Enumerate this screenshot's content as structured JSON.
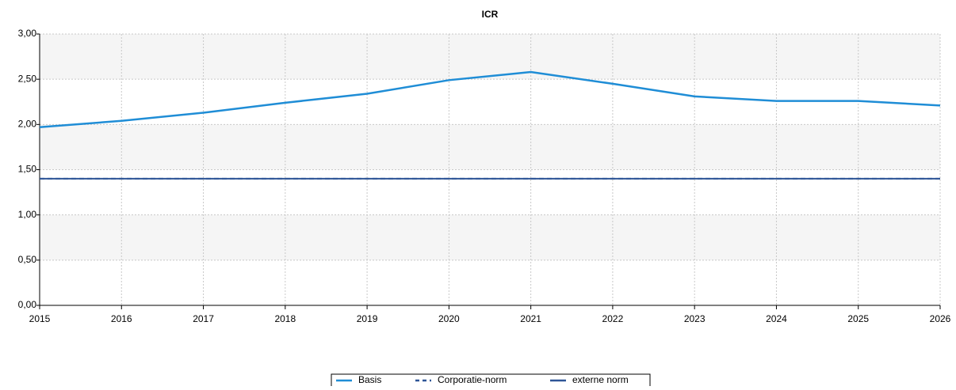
{
  "chart_data": {
    "type": "line",
    "title": "ICR",
    "x": [
      2015,
      2016,
      2017,
      2018,
      2019,
      2020,
      2021,
      2022,
      2023,
      2024,
      2025,
      2026
    ],
    "xlim": [
      2015,
      2026
    ],
    "xticks": [
      2015,
      2016,
      2017,
      2018,
      2019,
      2020,
      2021,
      2022,
      2023,
      2024,
      2025,
      2026
    ],
    "ylim": [
      0,
      3
    ],
    "yticks": [
      {
        "value": 0,
        "label": "0,00"
      },
      {
        "value": 0.5,
        "label": "0,50"
      },
      {
        "value": 1,
        "label": "1,00"
      },
      {
        "value": 1.5,
        "label": "1,50"
      },
      {
        "value": 2,
        "label": "2,00"
      },
      {
        "value": 2.5,
        "label": "2,50"
      },
      {
        "value": 3,
        "label": "3,00"
      }
    ],
    "grid": true,
    "legend": "bottom",
    "series": [
      {
        "name": "Basis",
        "color": "#1f8dd6",
        "line_style": "solid",
        "values": [
          1.97,
          2.04,
          2.13,
          2.24,
          2.34,
          2.49,
          2.58,
          2.45,
          2.31,
          2.26,
          2.26,
          2.21
        ]
      },
      {
        "name": "Corporatie-norm",
        "color": "#2e5597",
        "line_style": "dashed",
        "values": [
          1.4,
          1.4,
          1.4,
          1.4,
          1.4,
          1.4,
          1.4,
          1.4,
          1.4,
          1.4,
          1.4,
          1.4
        ]
      },
      {
        "name": "externe norm",
        "color": "#2e5597",
        "line_style": "solid",
        "values": [
          1.4,
          1.4,
          1.4,
          1.4,
          1.4,
          1.4,
          1.4,
          1.4,
          1.4,
          1.4,
          1.4,
          1.4
        ]
      }
    ]
  }
}
